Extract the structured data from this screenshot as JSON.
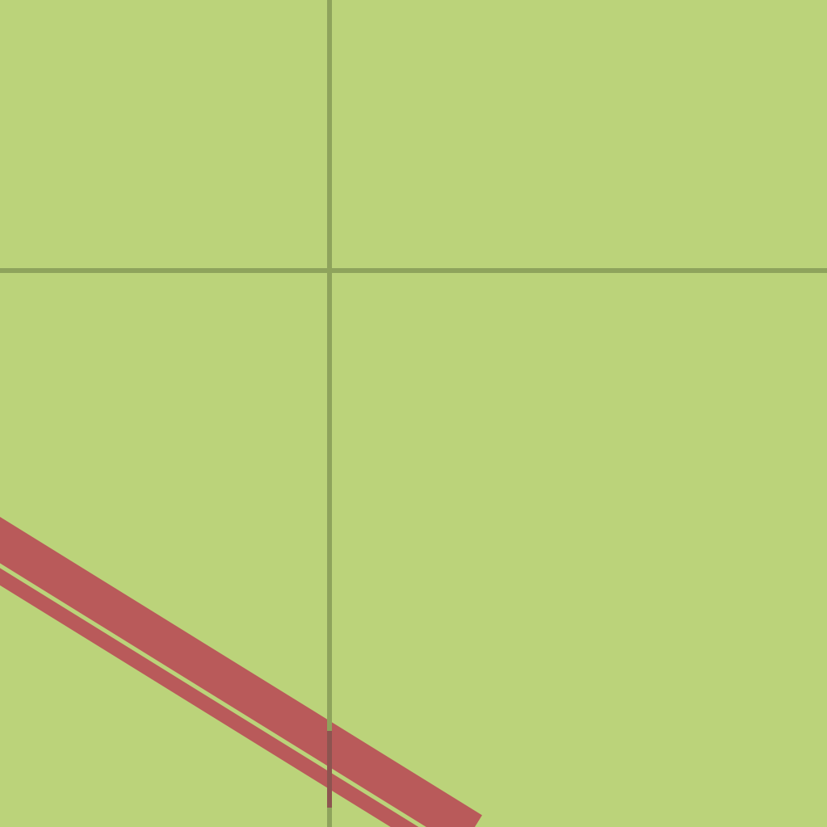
{
  "map": {
    "land_color": "#bbd37a",
    "grid_line_color": "#8ea35c",
    "route_color": "#b95a5a",
    "route_center_color": "#bbd37a",
    "grid_overlap_color": "#8d5450",
    "features": [
      "grid-line-vertical",
      "grid-line-horizontal",
      "dual-carriageway-route"
    ]
  }
}
